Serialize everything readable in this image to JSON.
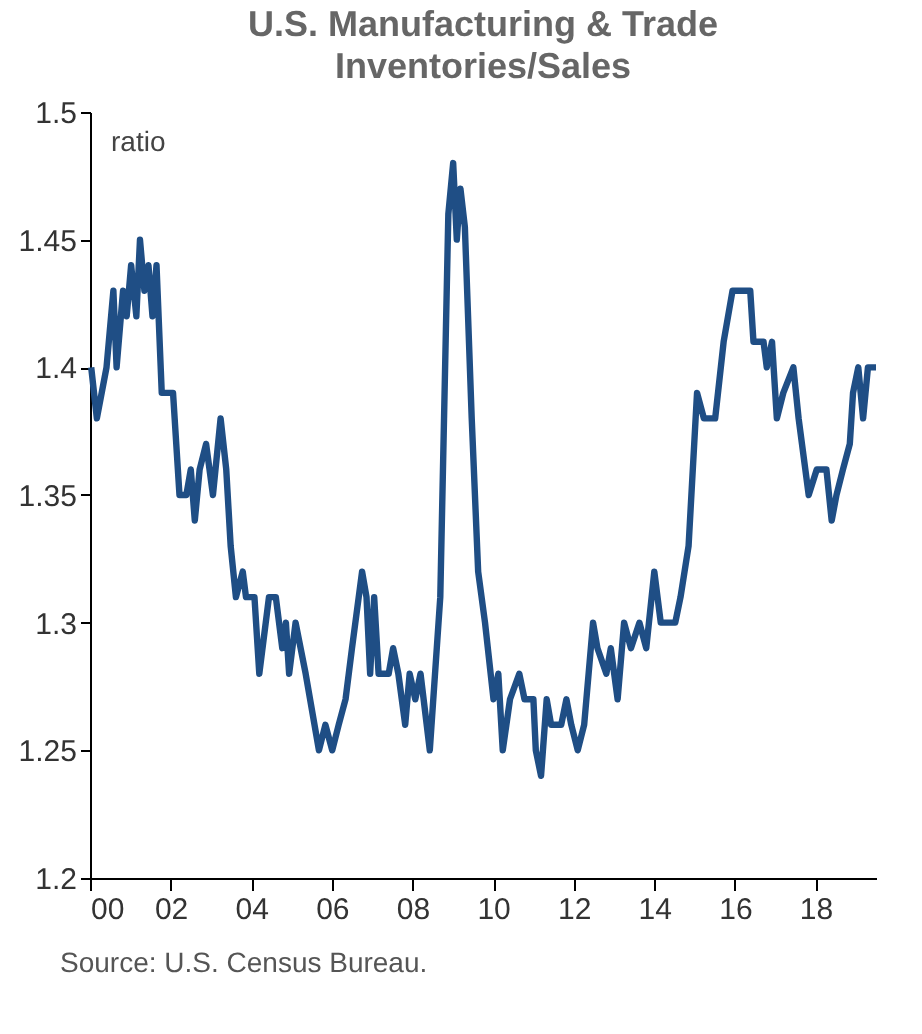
{
  "chart_data": {
    "type": "line",
    "title": "U.S. Manufacturing & Trade Inventories/Sales",
    "ylabel": "ratio",
    "annotations": [
      "Source: U.S. Census Bureau."
    ],
    "xlim": [
      2000,
      2019.5
    ],
    "xticks": [
      {
        "value": 2000,
        "label": "00"
      },
      {
        "value": 2002,
        "label": "02"
      },
      {
        "value": 2004,
        "label": "04"
      },
      {
        "value": 2006,
        "label": "06"
      },
      {
        "value": 2008,
        "label": "08"
      },
      {
        "value": 2010,
        "label": "10"
      },
      {
        "value": 2012,
        "label": "12"
      },
      {
        "value": 2014,
        "label": "14"
      },
      {
        "value": 2016,
        "label": "16"
      },
      {
        "value": 2018,
        "label": "18"
      }
    ],
    "ylim": [
      1.2,
      1.5
    ],
    "yticks": [
      1.2,
      1.25,
      1.3,
      1.35,
      1.4,
      1.45,
      1.5
    ],
    "grid": false,
    "x": [
      2000.03,
      2000.17,
      2000.41,
      2000.58,
      2000.66,
      2000.82,
      2000.91,
      2001.02,
      2001.15,
      2001.24,
      2001.35,
      2001.45,
      2001.55,
      2001.65,
      2001.78,
      2001.89,
      2002.06,
      2002.22,
      2002.39,
      2002.5,
      2002.6,
      2002.72,
      2002.88,
      2003.05,
      2003.24,
      2003.38,
      2003.49,
      2003.62,
      2003.79,
      2003.87,
      2004.08,
      2004.2,
      2004.44,
      2004.61,
      2004.77,
      2004.86,
      2004.94,
      2005.1,
      2005.35,
      2005.68,
      2005.84,
      2006.01,
      2006.17,
      2006.34,
      2006.5,
      2006.75,
      2006.86,
      2006.95,
      2007.05,
      2007.16,
      2007.41,
      2007.52,
      2007.65,
      2007.82,
      2007.93,
      2008.07,
      2008.2,
      2008.43,
      2008.69,
      2008.89,
      2009.01,
      2009.1,
      2009.19,
      2009.3,
      2009.47,
      2009.63,
      2009.8,
      2010.01,
      2010.13,
      2010.24,
      2010.42,
      2010.65,
      2010.78,
      2011.0,
      2011.06,
      2011.19,
      2011.33,
      2011.44,
      2011.69,
      2011.82,
      2011.94,
      2012.1,
      2012.26,
      2012.48,
      2012.59,
      2012.81,
      2012.92,
      2013.09,
      2013.25,
      2013.42,
      2013.63,
      2013.8,
      2014.0,
      2014.16,
      2014.52,
      2014.65,
      2014.85,
      2015.06,
      2015.23,
      2015.51,
      2015.72,
      2015.94,
      2016.38,
      2016.46,
      2016.71,
      2016.79,
      2016.92,
      2017.04,
      2017.2,
      2017.45,
      2017.58,
      2017.83,
      2018.03,
      2018.27,
      2018.4,
      2018.52,
      2018.68,
      2018.85,
      2018.93,
      2019.06,
      2019.18,
      2019.3,
      2019.5
    ],
    "series": [
      {
        "color": "#1f4e85",
        "values": [
          1.4,
          1.38,
          1.4,
          1.43,
          1.4,
          1.43,
          1.42,
          1.44,
          1.42,
          1.45,
          1.43,
          1.44,
          1.42,
          1.44,
          1.39,
          1.39,
          1.39,
          1.35,
          1.35,
          1.36,
          1.34,
          1.36,
          1.37,
          1.35,
          1.38,
          1.36,
          1.33,
          1.31,
          1.32,
          1.31,
          1.31,
          1.28,
          1.31,
          1.31,
          1.29,
          1.3,
          1.28,
          1.3,
          1.28,
          1.25,
          1.26,
          1.25,
          1.26,
          1.27,
          1.29,
          1.32,
          1.31,
          1.28,
          1.31,
          1.28,
          1.28,
          1.29,
          1.28,
          1.26,
          1.28,
          1.27,
          1.28,
          1.25,
          1.31,
          1.46,
          1.48,
          1.45,
          1.47,
          1.455,
          1.38,
          1.32,
          1.3,
          1.27,
          1.28,
          1.25,
          1.27,
          1.28,
          1.27,
          1.27,
          1.25,
          1.24,
          1.27,
          1.26,
          1.26,
          1.27,
          1.26,
          1.25,
          1.26,
          1.3,
          1.29,
          1.28,
          1.29,
          1.27,
          1.3,
          1.29,
          1.3,
          1.29,
          1.32,
          1.3,
          1.3,
          1.31,
          1.33,
          1.39,
          1.38,
          1.38,
          1.41,
          1.43,
          1.43,
          1.41,
          1.41,
          1.4,
          1.41,
          1.38,
          1.39,
          1.4,
          1.38,
          1.35,
          1.36,
          1.36,
          1.34,
          1.35,
          1.36,
          1.37,
          1.39,
          1.4,
          1.38,
          1.4,
          1.4
        ]
      }
    ]
  }
}
